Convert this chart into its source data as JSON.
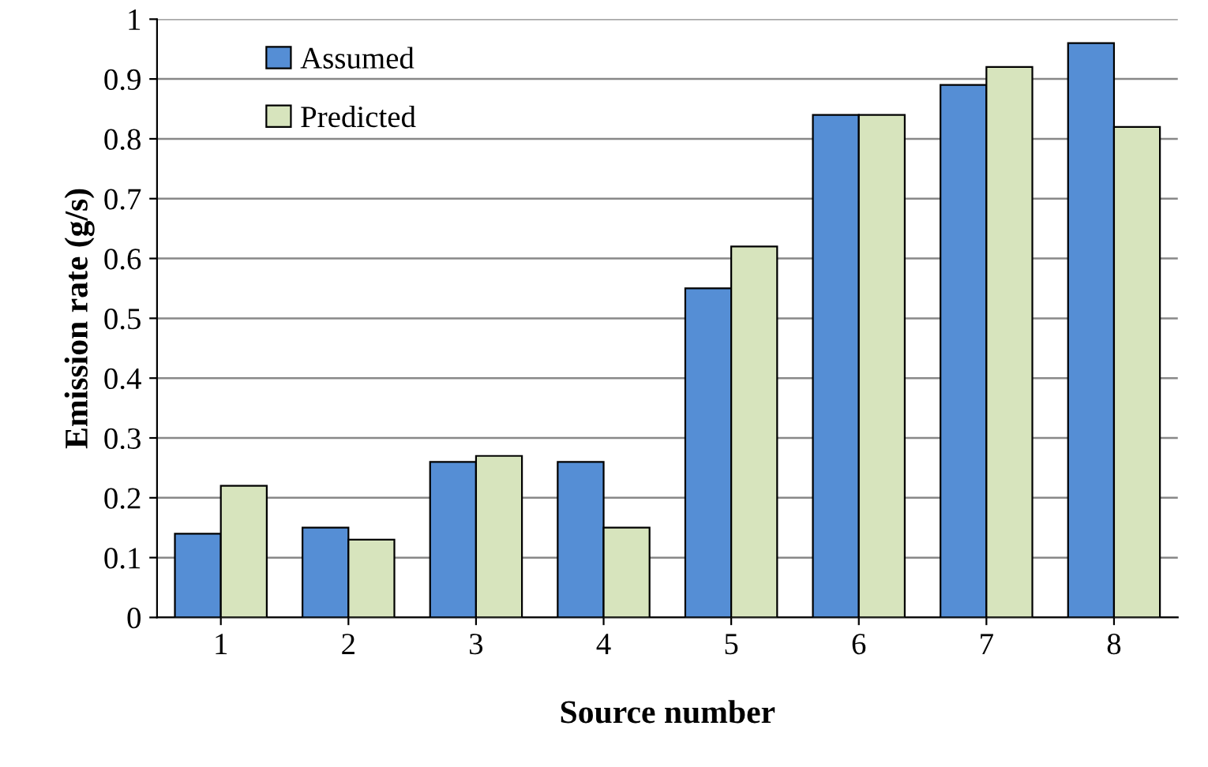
{
  "chart_data": {
    "type": "bar",
    "xlabel": "Source number",
    "ylabel": "Emission rate (g/s)",
    "categories": [
      "1",
      "2",
      "3",
      "4",
      "5",
      "6",
      "7",
      "8"
    ],
    "series": [
      {
        "name": "Assumed",
        "color": "#558ed5",
        "values": [
          0.14,
          0.15,
          0.26,
          0.26,
          0.55,
          0.84,
          0.89,
          0.96
        ]
      },
      {
        "name": "Predicted",
        "color": "#d7e4bd",
        "values": [
          0.22,
          0.13,
          0.27,
          0.15,
          0.62,
          0.84,
          0.92,
          0.82
        ]
      }
    ],
    "ylim": [
      0,
      1
    ],
    "yticks": [
      0,
      0.1,
      0.2,
      0.3,
      0.4,
      0.5,
      0.6,
      0.7,
      0.8,
      0.9,
      1
    ],
    "grid": "y",
    "legend": "top left"
  }
}
